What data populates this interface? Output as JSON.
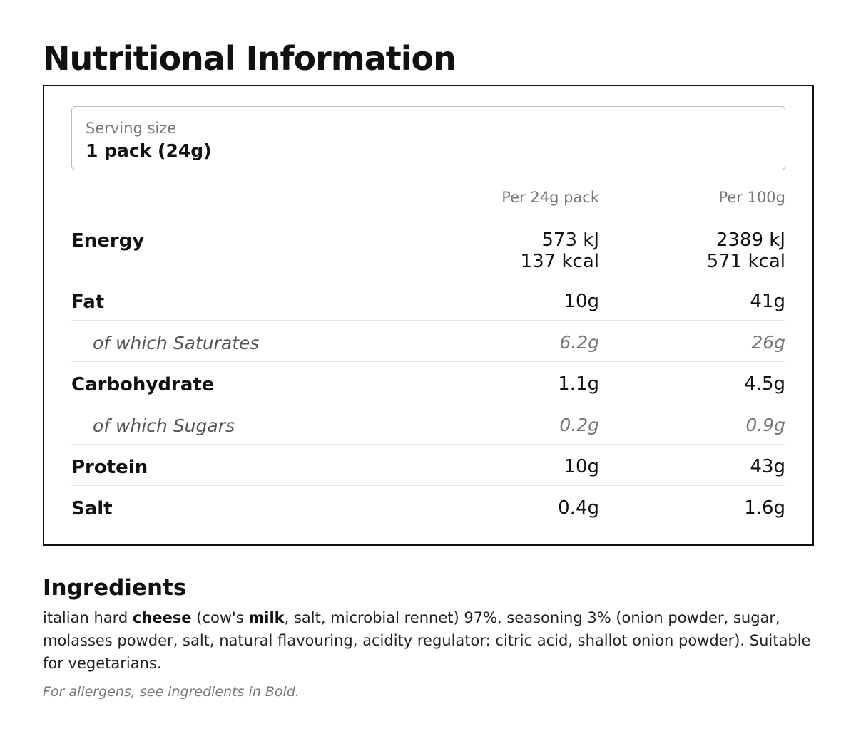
{
  "title": "Nutritional Information",
  "serving": {
    "label": "Serving size",
    "value": "1 pack (24g)"
  },
  "table": {
    "headers": [
      "Per 24g pack",
      "Per 100g"
    ],
    "energy": {
      "label": "Energy",
      "per_pack": [
        "573 kJ",
        "137 kcal"
      ],
      "per_100g": [
        "2389 kJ",
        "571 kcal"
      ]
    },
    "rows": [
      {
        "label": "Fat",
        "per_pack": "10g",
        "per_100g": "41g",
        "sub": false
      },
      {
        "label": "of which Saturates",
        "per_pack": "6.2g",
        "per_100g": "26g",
        "sub": true
      },
      {
        "label": "Carbohydrate",
        "per_pack": "1.1g",
        "per_100g": "4.5g",
        "sub": false
      },
      {
        "label": "of which Sugars",
        "per_pack": "0.2g",
        "per_100g": "0.9g",
        "sub": true
      },
      {
        "label": "Protein",
        "per_pack": "10g",
        "per_100g": "43g",
        "sub": false
      },
      {
        "label": "Salt",
        "per_pack": "0.4g",
        "per_100g": "1.6g",
        "sub": false
      }
    ]
  },
  "ingredients": {
    "title": "Ingredients",
    "parts": [
      {
        "text": "italian hard ",
        "bold": false
      },
      {
        "text": "cheese",
        "bold": true
      },
      {
        "text": " (cow's ",
        "bold": false
      },
      {
        "text": "milk",
        "bold": true
      },
      {
        "text": ", salt, microbial rennet) 97%, seasoning 3% (onion powder, sugar, molasses powder, salt, natural flavouring, acidity regulator: citric acid, shallot onion powder). Suitable for vegetarians.",
        "bold": false
      }
    ],
    "allergen_note": "For allergens, see ingredients in Bold."
  }
}
